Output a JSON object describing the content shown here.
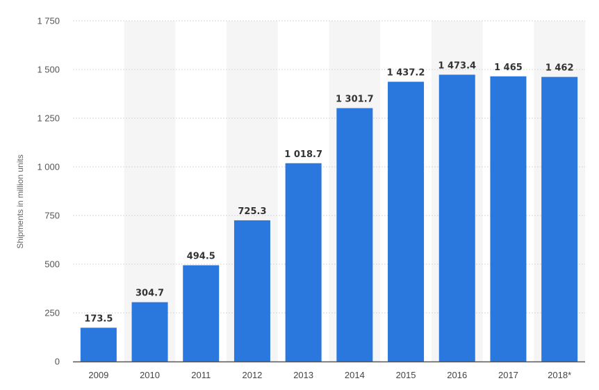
{
  "chart_data": {
    "type": "bar",
    "categories": [
      "2009",
      "2010",
      "2011",
      "2012",
      "2013",
      "2014",
      "2015",
      "2016",
      "2017",
      "2018*"
    ],
    "values": [
      173.5,
      304.7,
      494.5,
      725.3,
      1018.7,
      1301.7,
      1437.2,
      1473.4,
      1465,
      1462
    ],
    "value_labels": [
      "173.5",
      "304.7",
      "494.5",
      "725.3",
      "1 018.7",
      "1 301.7",
      "1 437.2",
      "1 473.4",
      "1 465",
      "1 462"
    ],
    "ylabel": "Shipments in million units",
    "xlabel": "",
    "ylim": [
      0,
      1750
    ],
    "yticks": [
      0,
      250,
      500,
      750,
      1000,
      1250,
      1500,
      1750
    ],
    "ytick_labels": [
      "0",
      "250",
      "500",
      "750",
      "1 000",
      "1 250",
      "1 500",
      "1 750"
    ],
    "grid": "horizontal dotted",
    "alternating_column_shading": true,
    "colors": {
      "bar": "#2a77dd",
      "band": "#f5f5f5",
      "grid": "#cccccc",
      "axis": "#555555"
    }
  }
}
